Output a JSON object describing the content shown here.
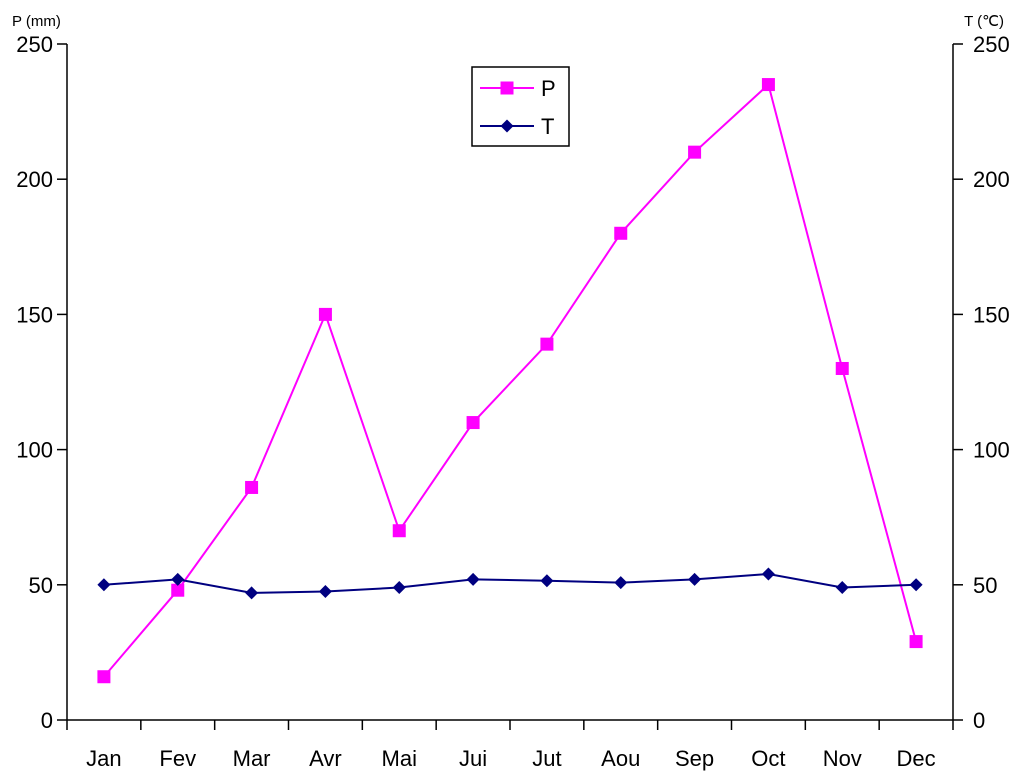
{
  "chart_data": {
    "type": "line",
    "categories": [
      "Jan",
      "Fev",
      "Mar",
      "Avr",
      "Mai",
      "Jui",
      "Jut",
      "Aou",
      "Sep",
      "Oct",
      "Nov",
      "Dec"
    ],
    "series": [
      {
        "name": "P",
        "axis": "left",
        "color": "#FF00FF",
        "marker": "square",
        "values": [
          16,
          48,
          86,
          150,
          70,
          110,
          139,
          180,
          210,
          235,
          130,
          29
        ]
      },
      {
        "name": "T",
        "axis": "right",
        "color": "#000080",
        "marker": "diamond",
        "values": [
          50,
          52,
          47,
          47.5,
          49,
          52,
          51.5,
          50.8,
          52,
          54,
          49,
          50
        ]
      }
    ],
    "ylabel_left": "P (mm)",
    "ylabel_right": "T (℃)",
    "ylim_left": [
      0,
      250
    ],
    "ylim_right": [
      0,
      250
    ],
    "yticks_left": [
      "0",
      "50",
      "100",
      "150",
      "200",
      "250"
    ],
    "yticks_right": [
      "0",
      "50",
      "100",
      "150",
      "200",
      "250"
    ],
    "grid": false,
    "legend": "top-center"
  }
}
